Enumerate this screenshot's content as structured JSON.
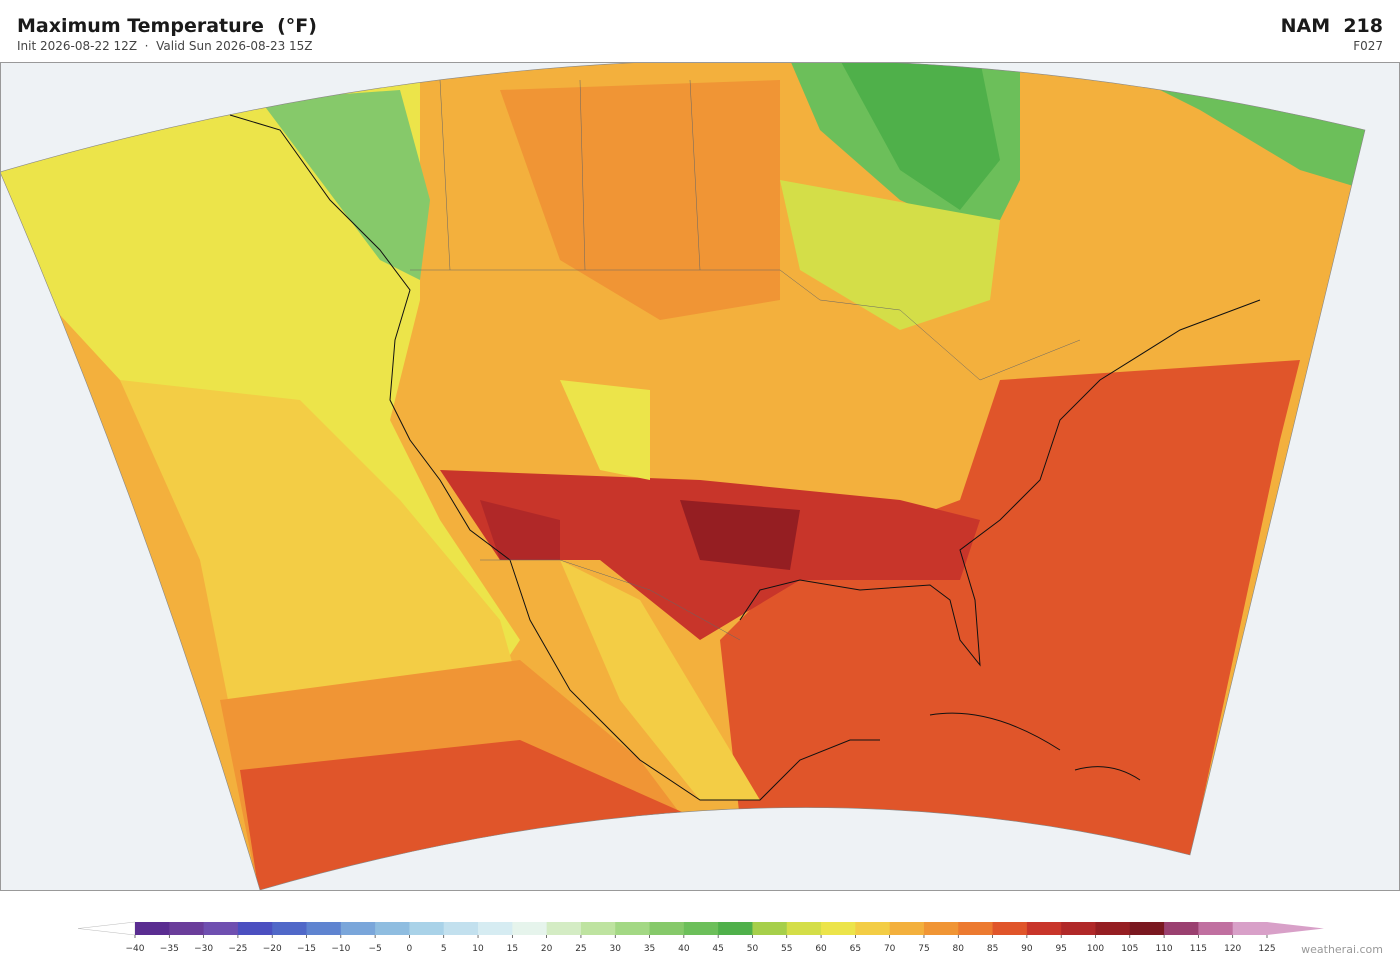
{
  "header": {
    "title": "Maximum Temperature  (°F)",
    "subtitle": "Init 2026-08-22 12Z  ·  Valid Sun 2026-08-23 15Z",
    "model": "NAM  218",
    "forecast_hour": "F027"
  },
  "colorbar": {
    "ticks": [
      {
        "value": -40,
        "label": "−40"
      },
      {
        "value": -35,
        "label": "−35"
      },
      {
        "value": -30,
        "label": "−30"
      },
      {
        "value": -25,
        "label": "−25"
      },
      {
        "value": -20,
        "label": "−20"
      },
      {
        "value": -15,
        "label": "−15"
      },
      {
        "value": -10,
        "label": "−10"
      },
      {
        "value": -5,
        "label": "−5"
      },
      0,
      5,
      10,
      15,
      20,
      25,
      30,
      35,
      40,
      45,
      50,
      55,
      60,
      65,
      70,
      75,
      80,
      85,
      90,
      95,
      100,
      105,
      110,
      115,
      120,
      125
    ],
    "colors": [
      "#5a2d91",
      "#6a3d9a",
      "#6f4fb0",
      "#4b4fc0",
      "#5068c8",
      "#5f84d0",
      "#7aa6da",
      "#8fbde0",
      "#a9d2e8",
      "#c2e0ee",
      "#d6ecf2",
      "#e6f4ec",
      "#d4ecc4",
      "#bee3a0",
      "#a3d884",
      "#86c96a",
      "#6cbf5a",
      "#4fb04a",
      "#a6cf4a",
      "#d4de48",
      "#ece44a",
      "#f3cd45",
      "#f3b03d",
      "#f09535",
      "#ec7a30",
      "#e0552a",
      "#c8352a",
      "#b02828",
      "#951e22",
      "#7a1820",
      "#9a4070",
      "#c070a0",
      "#d8a0c8"
    ],
    "under_color": "#ffffff",
    "over_color": "#d8a0c8"
  },
  "footer": {
    "credit": "weatherai.com"
  }
}
